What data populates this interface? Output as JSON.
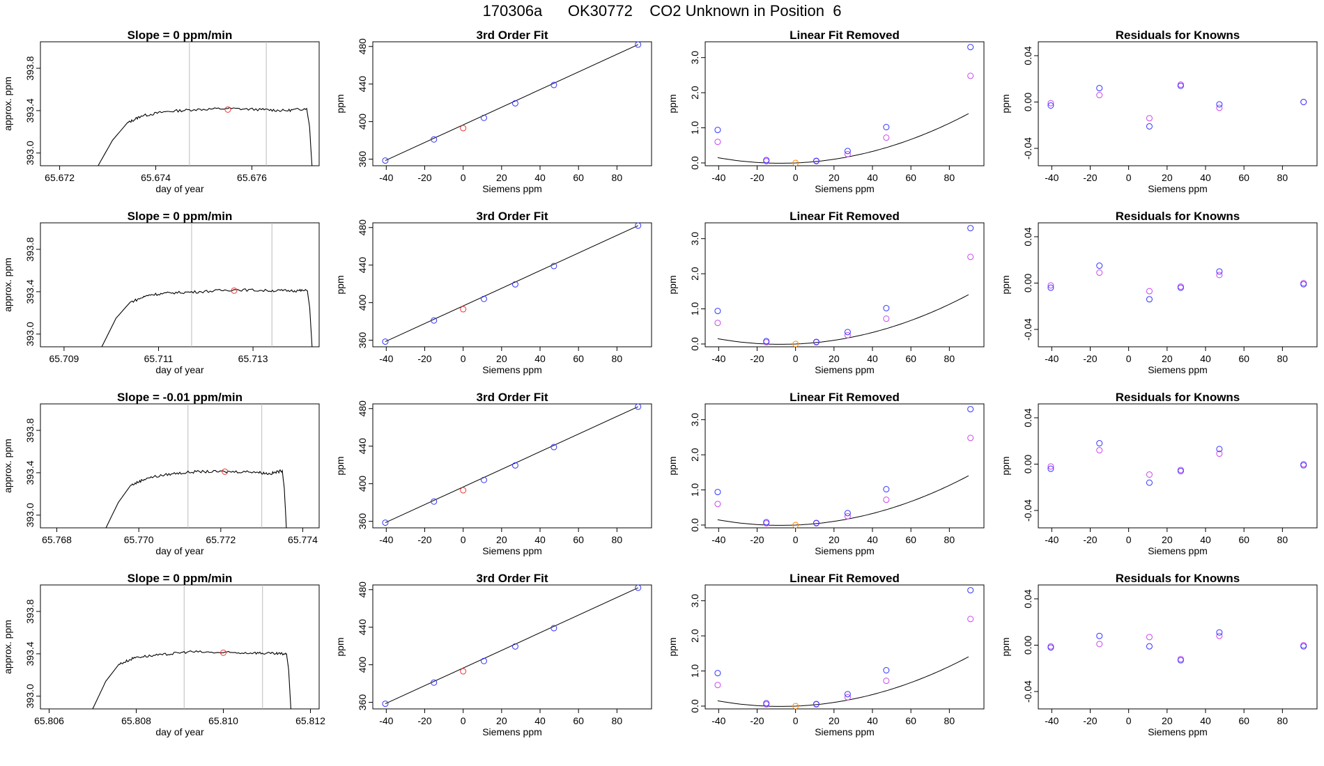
{
  "page": {
    "title": "170306a      OK30772    CO2 Unknown in Position  6"
  },
  "colors": {
    "line": "#000000",
    "blue": "#3333ff",
    "magenta": "#cc44ee",
    "red": "#ee3333",
    "orange": "#ff8800",
    "vline": "#bbbbbb"
  },
  "chart_data": [
    {
      "type": "line",
      "row": 0,
      "col": 0,
      "title": "Slope =  0  ppm/min",
      "xlabel": "day of year",
      "ylabel": "approx. ppm",
      "xlim": [
        65.6716,
        65.6774
      ],
      "ylim": [
        392.88,
        394.05
      ],
      "xticks": [
        "65.672",
        "65.674",
        "65.676"
      ],
      "xtick_values": [
        65.672,
        65.674,
        65.676
      ],
      "yticks": [
        "393.0",
        "393.4",
        "393.8"
      ],
      "ytick_values": [
        393.0,
        393.4,
        393.8
      ],
      "x": [
        65.6728,
        65.6731,
        65.6734,
        65.6737,
        65.6742,
        65.6748,
        65.6755,
        65.6762,
        65.6767,
        65.67714,
        65.6772,
        65.67725
      ],
      "y": [
        392.88,
        393.12,
        393.28,
        393.35,
        393.39,
        393.41,
        393.42,
        393.41,
        393.4,
        393.42,
        393.25,
        392.88
      ],
      "vlines": [
        65.6747,
        65.6763
      ],
      "mean_point": {
        "x": 65.6755,
        "y": 393.41
      }
    },
    {
      "type": "line",
      "row": 1,
      "col": 0,
      "title": "Slope =  0  ppm/min",
      "xlabel": "day of year",
      "ylabel": "approx. ppm",
      "xlim": [
        65.7085,
        65.7144
      ],
      "ylim": [
        392.88,
        394.05
      ],
      "xticks": [
        "65.709",
        "65.711",
        "65.713"
      ],
      "xtick_values": [
        65.709,
        65.711,
        65.713
      ],
      "yticks": [
        "393.0",
        "393.4",
        "393.8"
      ],
      "ytick_values": [
        393.0,
        393.4,
        393.8
      ],
      "x": [
        65.7098,
        65.7101,
        65.7104,
        65.7108,
        65.7113,
        65.7119,
        65.7126,
        65.7133,
        65.7138,
        65.71415,
        65.7142,
        65.71425
      ],
      "y": [
        392.88,
        393.15,
        393.3,
        393.37,
        393.39,
        393.4,
        393.42,
        393.41,
        393.41,
        393.41,
        393.25,
        392.88
      ],
      "vlines": [
        65.7117,
        65.7134
      ],
      "mean_point": {
        "x": 65.7126,
        "y": 393.41
      }
    },
    {
      "type": "line",
      "row": 2,
      "col": 0,
      "title": "Slope =  -0.01  ppm/min",
      "xlabel": "day of year",
      "ylabel": "approx. ppm",
      "xlim": [
        65.7676,
        65.7744
      ],
      "ylim": [
        392.88,
        394.05
      ],
      "xticks": [
        "65.768",
        "65.770",
        "65.772",
        "65.774"
      ],
      "xtick_values": [
        65.768,
        65.77,
        65.772,
        65.774
      ],
      "yticks": [
        "393.0",
        "393.4",
        "393.8"
      ],
      "ytick_values": [
        393.0,
        393.4,
        393.8
      ],
      "x": [
        65.7692,
        65.7695,
        65.7698,
        65.7702,
        65.7708,
        65.7714,
        65.7721,
        65.7728,
        65.7732,
        65.7735,
        65.77355,
        65.7736
      ],
      "y": [
        392.88,
        393.12,
        393.28,
        393.35,
        393.39,
        393.41,
        393.41,
        393.41,
        393.39,
        393.42,
        393.25,
        392.88
      ],
      "vlines": [
        65.7712,
        65.773
      ],
      "mean_point": {
        "x": 65.7721,
        "y": 393.41
      }
    },
    {
      "type": "line",
      "row": 3,
      "col": 0,
      "title": "Slope =  0  ppm/min",
      "xlabel": "day of year",
      "ylabel": "approx. ppm",
      "xlim": [
        65.8058,
        65.8122
      ],
      "ylim": [
        392.88,
        394.05
      ],
      "xticks": [
        "65.806",
        "65.808",
        "65.810",
        "65.812"
      ],
      "xtick_values": [
        65.806,
        65.808,
        65.81,
        65.812
      ],
      "yticks": [
        "393.0",
        "393.4",
        "393.8"
      ],
      "ytick_values": [
        393.0,
        393.4,
        393.8
      ],
      "x": [
        65.807,
        65.8073,
        65.8076,
        65.808,
        65.8086,
        65.8092,
        65.81,
        65.8107,
        65.8112,
        65.81145,
        65.8115,
        65.81155
      ],
      "y": [
        392.88,
        393.14,
        393.3,
        393.37,
        393.39,
        393.42,
        393.41,
        393.41,
        393.4,
        393.4,
        393.25,
        392.88
      ],
      "vlines": [
        65.8091,
        65.8109
      ],
      "mean_point": {
        "x": 65.81,
        "y": 393.41
      }
    }
  ],
  "fit_data": {
    "xlim": [
      -47,
      98
    ],
    "xticks": [
      "-40",
      "-20",
      "0",
      "20",
      "40",
      "60",
      "80"
    ],
    "xtick_values": [
      -40,
      -20,
      0,
      20,
      40,
      60,
      80
    ],
    "known_x": [
      -40.5,
      -15.2,
      10.8,
      27.1,
      47.2,
      91.0
    ],
    "unknown_x": 0,
    "cubic": {
      "title": "3rd Order Fit",
      "xlabel": "Siemens ppm",
      "ylabel": "ppm",
      "ylim": [
        353,
        485
      ],
      "yticks": [
        "360",
        "400",
        "440",
        "480"
      ],
      "ytick_values": [
        360,
        400,
        440,
        480
      ],
      "known_y": [
        358.5,
        381.0,
        404.0,
        419.5,
        439.0,
        482.0
      ],
      "unknown_y": 393.0
    },
    "linear_removed": {
      "title": "Linear Fit Removed",
      "xlabel": "Siemens ppm",
      "ylabel": "ppm",
      "ylim": [
        -0.08,
        3.45
      ],
      "yticks": [
        "0.0",
        "1.0",
        "2.0",
        "3.0"
      ],
      "ytick_values": [
        0,
        1,
        2,
        3
      ],
      "curve_coeffs": [
        0.000148,
        0.00228,
        0.003,
        0.0
      ],
      "blue_y": [
        0.94,
        0.08,
        0.06,
        0.34,
        1.02,
        3.3
      ],
      "magenta_y": [
        0.6,
        0.05,
        0.05,
        0.25,
        0.72,
        2.48
      ],
      "unknown_y": 0.0
    },
    "residuals": {
      "title": "Residuals for Knowns",
      "xlabel": "Siemens ppm",
      "ylabel": "ppm",
      "ylim": [
        -0.055,
        0.052
      ],
      "yticks": [
        "-0.04",
        "0.00",
        "0.04"
      ],
      "ytick_values": [
        -0.04,
        0.0,
        0.04
      ],
      "rows": [
        {
          "blue": [
            -0.003,
            0.012,
            -0.021,
            0.014,
            -0.002,
            0.0
          ],
          "magenta": [
            -0.001,
            0.006,
            -0.014,
            0.015,
            -0.005,
            0.0
          ]
        },
        {
          "blue": [
            -0.004,
            0.015,
            -0.014,
            -0.004,
            0.01,
            -0.001
          ],
          "magenta": [
            -0.002,
            0.009,
            -0.007,
            -0.003,
            0.007,
            0.0
          ]
        },
        {
          "blue": [
            -0.004,
            0.018,
            -0.016,
            -0.006,
            0.013,
            -0.001
          ],
          "magenta": [
            -0.002,
            0.012,
            -0.009,
            -0.005,
            0.009,
            0.0
          ]
        },
        {
          "blue": [
            -0.002,
            0.008,
            -0.001,
            -0.013,
            0.011,
            -0.001
          ],
          "magenta": [
            -0.001,
            0.001,
            0.007,
            -0.012,
            0.008,
            0.0
          ]
        }
      ]
    }
  }
}
